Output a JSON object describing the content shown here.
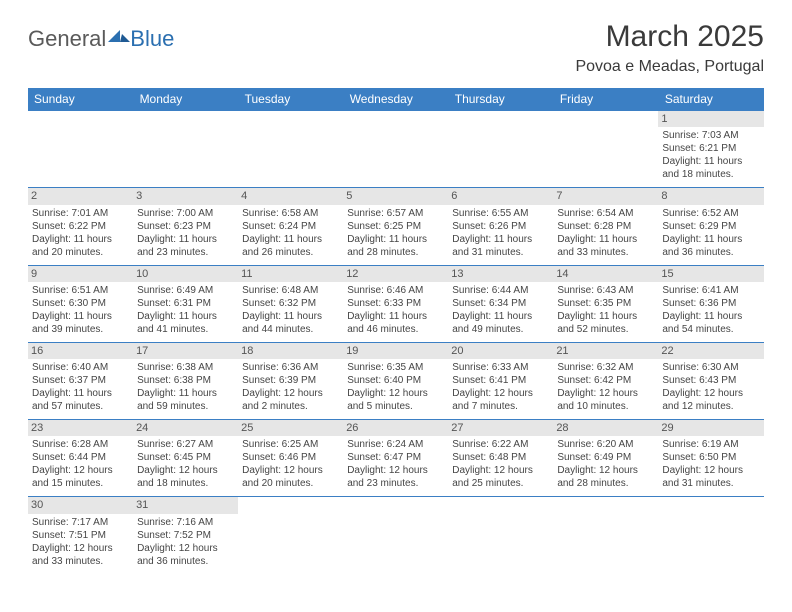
{
  "logo": {
    "text_general": "General",
    "text_blue": "Blue"
  },
  "header": {
    "month_title": "March 2025",
    "location": "Povoa e Meadas, Portugal"
  },
  "colors": {
    "header_bg": "#3b7fc4",
    "header_text": "#ffffff",
    "daynum_bg": "#e6e6e6",
    "border": "#3b7fc4",
    "body_text": "#454545"
  },
  "weekdays": [
    "Sunday",
    "Monday",
    "Tuesday",
    "Wednesday",
    "Thursday",
    "Friday",
    "Saturday"
  ],
  "weeks": [
    [
      {
        "day": "",
        "sunrise": "",
        "sunset": "",
        "daylight1": "",
        "daylight2": ""
      },
      {
        "day": "",
        "sunrise": "",
        "sunset": "",
        "daylight1": "",
        "daylight2": ""
      },
      {
        "day": "",
        "sunrise": "",
        "sunset": "",
        "daylight1": "",
        "daylight2": ""
      },
      {
        "day": "",
        "sunrise": "",
        "sunset": "",
        "daylight1": "",
        "daylight2": ""
      },
      {
        "day": "",
        "sunrise": "",
        "sunset": "",
        "daylight1": "",
        "daylight2": ""
      },
      {
        "day": "",
        "sunrise": "",
        "sunset": "",
        "daylight1": "",
        "daylight2": ""
      },
      {
        "day": "1",
        "sunrise": "Sunrise: 7:03 AM",
        "sunset": "Sunset: 6:21 PM",
        "daylight1": "Daylight: 11 hours",
        "daylight2": "and 18 minutes."
      }
    ],
    [
      {
        "day": "2",
        "sunrise": "Sunrise: 7:01 AM",
        "sunset": "Sunset: 6:22 PM",
        "daylight1": "Daylight: 11 hours",
        "daylight2": "and 20 minutes."
      },
      {
        "day": "3",
        "sunrise": "Sunrise: 7:00 AM",
        "sunset": "Sunset: 6:23 PM",
        "daylight1": "Daylight: 11 hours",
        "daylight2": "and 23 minutes."
      },
      {
        "day": "4",
        "sunrise": "Sunrise: 6:58 AM",
        "sunset": "Sunset: 6:24 PM",
        "daylight1": "Daylight: 11 hours",
        "daylight2": "and 26 minutes."
      },
      {
        "day": "5",
        "sunrise": "Sunrise: 6:57 AM",
        "sunset": "Sunset: 6:25 PM",
        "daylight1": "Daylight: 11 hours",
        "daylight2": "and 28 minutes."
      },
      {
        "day": "6",
        "sunrise": "Sunrise: 6:55 AM",
        "sunset": "Sunset: 6:26 PM",
        "daylight1": "Daylight: 11 hours",
        "daylight2": "and 31 minutes."
      },
      {
        "day": "7",
        "sunrise": "Sunrise: 6:54 AM",
        "sunset": "Sunset: 6:28 PM",
        "daylight1": "Daylight: 11 hours",
        "daylight2": "and 33 minutes."
      },
      {
        "day": "8",
        "sunrise": "Sunrise: 6:52 AM",
        "sunset": "Sunset: 6:29 PM",
        "daylight1": "Daylight: 11 hours",
        "daylight2": "and 36 minutes."
      }
    ],
    [
      {
        "day": "9",
        "sunrise": "Sunrise: 6:51 AM",
        "sunset": "Sunset: 6:30 PM",
        "daylight1": "Daylight: 11 hours",
        "daylight2": "and 39 minutes."
      },
      {
        "day": "10",
        "sunrise": "Sunrise: 6:49 AM",
        "sunset": "Sunset: 6:31 PM",
        "daylight1": "Daylight: 11 hours",
        "daylight2": "and 41 minutes."
      },
      {
        "day": "11",
        "sunrise": "Sunrise: 6:48 AM",
        "sunset": "Sunset: 6:32 PM",
        "daylight1": "Daylight: 11 hours",
        "daylight2": "and 44 minutes."
      },
      {
        "day": "12",
        "sunrise": "Sunrise: 6:46 AM",
        "sunset": "Sunset: 6:33 PM",
        "daylight1": "Daylight: 11 hours",
        "daylight2": "and 46 minutes."
      },
      {
        "day": "13",
        "sunrise": "Sunrise: 6:44 AM",
        "sunset": "Sunset: 6:34 PM",
        "daylight1": "Daylight: 11 hours",
        "daylight2": "and 49 minutes."
      },
      {
        "day": "14",
        "sunrise": "Sunrise: 6:43 AM",
        "sunset": "Sunset: 6:35 PM",
        "daylight1": "Daylight: 11 hours",
        "daylight2": "and 52 minutes."
      },
      {
        "day": "15",
        "sunrise": "Sunrise: 6:41 AM",
        "sunset": "Sunset: 6:36 PM",
        "daylight1": "Daylight: 11 hours",
        "daylight2": "and 54 minutes."
      }
    ],
    [
      {
        "day": "16",
        "sunrise": "Sunrise: 6:40 AM",
        "sunset": "Sunset: 6:37 PM",
        "daylight1": "Daylight: 11 hours",
        "daylight2": "and 57 minutes."
      },
      {
        "day": "17",
        "sunrise": "Sunrise: 6:38 AM",
        "sunset": "Sunset: 6:38 PM",
        "daylight1": "Daylight: 11 hours",
        "daylight2": "and 59 minutes."
      },
      {
        "day": "18",
        "sunrise": "Sunrise: 6:36 AM",
        "sunset": "Sunset: 6:39 PM",
        "daylight1": "Daylight: 12 hours",
        "daylight2": "and 2 minutes."
      },
      {
        "day": "19",
        "sunrise": "Sunrise: 6:35 AM",
        "sunset": "Sunset: 6:40 PM",
        "daylight1": "Daylight: 12 hours",
        "daylight2": "and 5 minutes."
      },
      {
        "day": "20",
        "sunrise": "Sunrise: 6:33 AM",
        "sunset": "Sunset: 6:41 PM",
        "daylight1": "Daylight: 12 hours",
        "daylight2": "and 7 minutes."
      },
      {
        "day": "21",
        "sunrise": "Sunrise: 6:32 AM",
        "sunset": "Sunset: 6:42 PM",
        "daylight1": "Daylight: 12 hours",
        "daylight2": "and 10 minutes."
      },
      {
        "day": "22",
        "sunrise": "Sunrise: 6:30 AM",
        "sunset": "Sunset: 6:43 PM",
        "daylight1": "Daylight: 12 hours",
        "daylight2": "and 12 minutes."
      }
    ],
    [
      {
        "day": "23",
        "sunrise": "Sunrise: 6:28 AM",
        "sunset": "Sunset: 6:44 PM",
        "daylight1": "Daylight: 12 hours",
        "daylight2": "and 15 minutes."
      },
      {
        "day": "24",
        "sunrise": "Sunrise: 6:27 AM",
        "sunset": "Sunset: 6:45 PM",
        "daylight1": "Daylight: 12 hours",
        "daylight2": "and 18 minutes."
      },
      {
        "day": "25",
        "sunrise": "Sunrise: 6:25 AM",
        "sunset": "Sunset: 6:46 PM",
        "daylight1": "Daylight: 12 hours",
        "daylight2": "and 20 minutes."
      },
      {
        "day": "26",
        "sunrise": "Sunrise: 6:24 AM",
        "sunset": "Sunset: 6:47 PM",
        "daylight1": "Daylight: 12 hours",
        "daylight2": "and 23 minutes."
      },
      {
        "day": "27",
        "sunrise": "Sunrise: 6:22 AM",
        "sunset": "Sunset: 6:48 PM",
        "daylight1": "Daylight: 12 hours",
        "daylight2": "and 25 minutes."
      },
      {
        "day": "28",
        "sunrise": "Sunrise: 6:20 AM",
        "sunset": "Sunset: 6:49 PM",
        "daylight1": "Daylight: 12 hours",
        "daylight2": "and 28 minutes."
      },
      {
        "day": "29",
        "sunrise": "Sunrise: 6:19 AM",
        "sunset": "Sunset: 6:50 PM",
        "daylight1": "Daylight: 12 hours",
        "daylight2": "and 31 minutes."
      }
    ],
    [
      {
        "day": "30",
        "sunrise": "Sunrise: 7:17 AM",
        "sunset": "Sunset: 7:51 PM",
        "daylight1": "Daylight: 12 hours",
        "daylight2": "and 33 minutes."
      },
      {
        "day": "31",
        "sunrise": "Sunrise: 7:16 AM",
        "sunset": "Sunset: 7:52 PM",
        "daylight1": "Daylight: 12 hours",
        "daylight2": "and 36 minutes."
      },
      {
        "day": "",
        "sunrise": "",
        "sunset": "",
        "daylight1": "",
        "daylight2": ""
      },
      {
        "day": "",
        "sunrise": "",
        "sunset": "",
        "daylight1": "",
        "daylight2": ""
      },
      {
        "day": "",
        "sunrise": "",
        "sunset": "",
        "daylight1": "",
        "daylight2": ""
      },
      {
        "day": "",
        "sunrise": "",
        "sunset": "",
        "daylight1": "",
        "daylight2": ""
      },
      {
        "day": "",
        "sunrise": "",
        "sunset": "",
        "daylight1": "",
        "daylight2": ""
      }
    ]
  ]
}
